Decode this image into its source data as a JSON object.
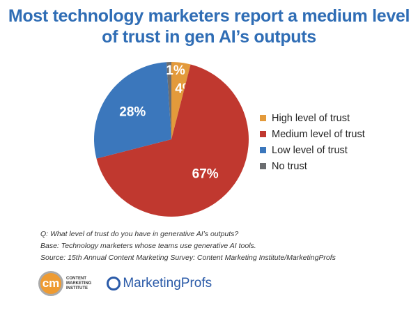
{
  "chart_data": {
    "type": "pie",
    "title": "Most technology marketers report a medium level of trust in gen AI’s outputs",
    "slices": [
      {
        "label": "High level of trust",
        "value": 4,
        "data_label": "4%",
        "color": "#e39a3b"
      },
      {
        "label": "Medium level of trust",
        "value": 67,
        "data_label": "67%",
        "color": "#c0382f"
      },
      {
        "label": "Low level of trust",
        "value": 28,
        "data_label": "28%",
        "color": "#3b77bc"
      },
      {
        "label": "No trust",
        "value": 1,
        "data_label": "1%",
        "color": "#6b6d70"
      }
    ],
    "start": "top",
    "direction": "clockwise",
    "legend_position": "right"
  },
  "notes": {
    "question": "Q: What level of trust do you have in generative AI’s outputs?",
    "base": "Base: Technology marketers whose teams use generative AI tools.",
    "source": "Source: 15th Annual Content Marketing Survey: Content Marketing Institute/MarketingProfs"
  },
  "logos": {
    "cmi_mark": "cm",
    "cmi_text": "CONTENT MARKETING INSTITUTE",
    "mp_text": "MarketingProfs"
  }
}
